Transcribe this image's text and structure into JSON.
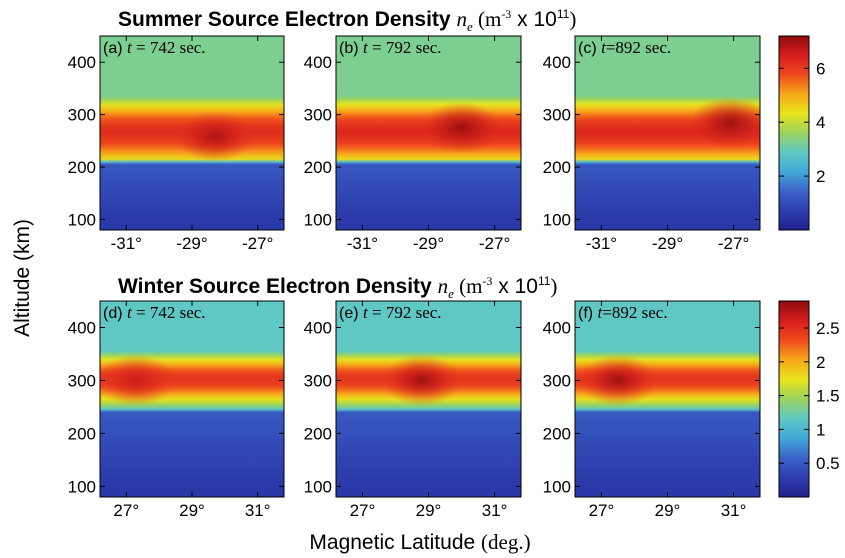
{
  "colors": {
    "colormap": [
      "#20208c",
      "#2d3fae",
      "#3b63c9",
      "#42a8d8",
      "#5fc8c4",
      "#9bd35e",
      "#e8e41c",
      "#f6a81a",
      "#ef4a1d",
      "#d61d1d",
      "#8e0c0c"
    ]
  },
  "chart_data": [
    {
      "type": "heatmap",
      "title": {
        "prefix": "Summer Source Electron Density ",
        "symbol": "n",
        "sub": "e",
        "unit_open": " (m",
        "unit_exp": "-3",
        "unit_mid": " x 10",
        "unit_exp2": "11",
        "unit_close": ")"
      },
      "ylabel": "Altitude (km)",
      "xlabel": "",
      "xlim": [
        -31.8,
        -26.2
      ],
      "ylim": [
        80,
        450
      ],
      "xticks": [
        {
          "v": -31,
          "label": "-31°"
        },
        {
          "v": -29,
          "label": "-29°"
        },
        {
          "v": -27,
          "label": "-27°"
        }
      ],
      "yticks": [
        {
          "v": 100,
          "label": "100"
        },
        {
          "v": 200,
          "label": "200"
        },
        {
          "v": 300,
          "label": "300"
        },
        {
          "v": 400,
          "label": "400"
        }
      ],
      "colorbar": {
        "vmin": 0,
        "vmax": 7.2,
        "ticks": [
          {
            "v": 2,
            "label": "2"
          },
          {
            "v": 4,
            "label": "4"
          },
          {
            "v": 6,
            "label": "6"
          }
        ]
      },
      "panels": [
        {
          "label": "(a)",
          "t_symbol": "t",
          "t_text": " = 742 sec.",
          "peak_alt": 270,
          "max_value": 6.2,
          "enhancement": {
            "lat": -28.3,
            "alt": 258,
            "value": 6.9
          }
        },
        {
          "label": "(b)",
          "t_symbol": "t",
          "t_text": " = 792 sec.",
          "peak_alt": 270,
          "max_value": 6.3,
          "enhancement": {
            "lat": -28.0,
            "alt": 275,
            "value": 7.1
          }
        },
        {
          "label": "(c)",
          "t_symbol": "t",
          "t_text": "=892 sec.",
          "peak_alt": 270,
          "max_value": 6.3,
          "enhancement": {
            "lat": -27.1,
            "alt": 285,
            "value": 7.1
          }
        }
      ]
    },
    {
      "type": "heatmap",
      "title": {
        "prefix": "Winter Source Electron Density ",
        "symbol": "n",
        "sub": "e",
        "unit_open": " (m",
        "unit_exp": "-3",
        "unit_mid": " x 10",
        "unit_exp2": "11",
        "unit_close": ")"
      },
      "ylabel": "Altitude (km)",
      "xlabel": "Magnetic Latitude (deg.)",
      "xlim": [
        26.2,
        31.8
      ],
      "ylim": [
        80,
        450
      ],
      "xticks": [
        {
          "v": 27,
          "label": "27°"
        },
        {
          "v": 29,
          "label": "29°"
        },
        {
          "v": 31,
          "label": "31°"
        }
      ],
      "yticks": [
        {
          "v": 100,
          "label": "100"
        },
        {
          "v": 200,
          "label": "200"
        },
        {
          "v": 300,
          "label": "300"
        },
        {
          "v": 400,
          "label": "400"
        }
      ],
      "colorbar": {
        "vmin": 0,
        "vmax": 2.9,
        "ticks": [
          {
            "v": 0.5,
            "label": "0.5"
          },
          {
            "v": 1,
            "label": "1"
          },
          {
            "v": 1.5,
            "label": "1.5"
          },
          {
            "v": 2,
            "label": "2"
          },
          {
            "v": 2.5,
            "label": "2.5"
          }
        ]
      },
      "panels": [
        {
          "label": "(d)",
          "t_symbol": "t",
          "t_text": " = 742 sec.",
          "peak_alt": 305,
          "max_value": 2.45,
          "enhancement": {
            "lat": 27.3,
            "alt": 300,
            "value": 2.65
          }
        },
        {
          "label": "(e)",
          "t_symbol": "t",
          "t_text": " = 792 sec.",
          "peak_alt": 305,
          "max_value": 2.45,
          "enhancement": {
            "lat": 28.8,
            "alt": 300,
            "value": 2.85
          }
        },
        {
          "label": "(f)",
          "t_symbol": "t",
          "t_text": "=892 sec.",
          "peak_alt": 305,
          "max_value": 2.45,
          "enhancement": {
            "lat": 27.5,
            "alt": 300,
            "value": 2.85
          }
        }
      ]
    }
  ]
}
